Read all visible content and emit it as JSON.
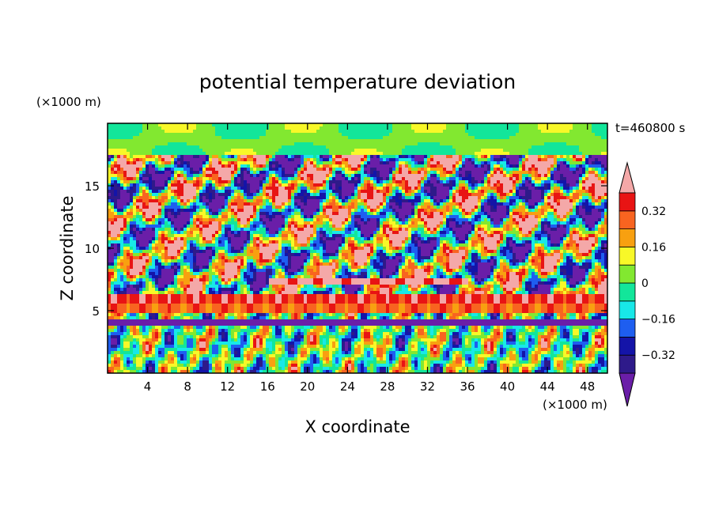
{
  "chart_data": {
    "type": "heatmap",
    "title": "potential temperature deviation",
    "time_label": "t=460800 s",
    "xlabel": "X coordinate",
    "ylabel": "Z coordinate",
    "x_unit": "(×1000 m)",
    "y_unit": "(×1000 m)",
    "xlim": [
      0,
      50
    ],
    "ylim": [
      0,
      20
    ],
    "x_ticks": [
      4,
      8,
      12,
      16,
      20,
      24,
      28,
      32,
      36,
      40,
      44,
      48
    ],
    "y_ticks": [
      5,
      10,
      15
    ],
    "grid": false,
    "colorbar": {
      "levels": [
        -0.4,
        -0.32,
        -0.24,
        -0.16,
        -0.08,
        0,
        0.08,
        0.16,
        0.24,
        0.32,
        0.4
      ],
      "colors": [
        "#2e1a8a",
        "#1414a8",
        "#1e5ef0",
        "#18e8e8",
        "#12e69a",
        "#82e830",
        "#f8f828",
        "#f8a010",
        "#f86420",
        "#e81414"
      ],
      "under_color": "#6a1ea8",
      "over_color": "#f4a8a8",
      "tick_labels": [
        "0.32",
        "0.16",
        "0",
        "-0.16",
        "-0.32"
      ],
      "tick_values": [
        0.32,
        0.16,
        0,
        -0.16,
        -0.32
      ]
    },
    "bands": [
      {
        "z_center": 4.1,
        "value": -0.45
      },
      {
        "z_center": 5.2,
        "value": 0.28
      },
      {
        "z_center": 5.9,
        "value": 0.36
      },
      {
        "z_center": 7.3,
        "value": 0.42
      }
    ]
  }
}
